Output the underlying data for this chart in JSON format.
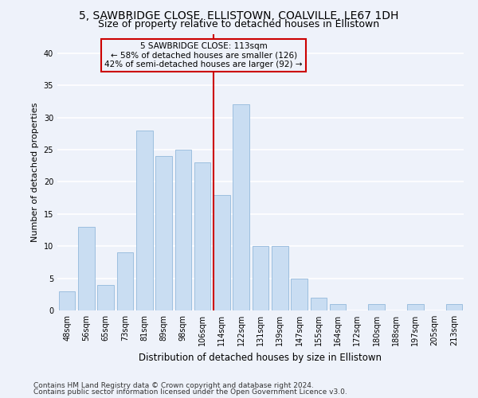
{
  "title1": "5, SAWBRIDGE CLOSE, ELLISTOWN, COALVILLE, LE67 1DH",
  "title2": "Size of property relative to detached houses in Ellistown",
  "xlabel": "Distribution of detached houses by size in Ellistown",
  "ylabel": "Number of detached properties",
  "categories": [
    "48sqm",
    "56sqm",
    "65sqm",
    "73sqm",
    "81sqm",
    "89sqm",
    "98sqm",
    "106sqm",
    "114sqm",
    "122sqm",
    "131sqm",
    "139sqm",
    "147sqm",
    "155sqm",
    "164sqm",
    "172sqm",
    "180sqm",
    "188sqm",
    "197sqm",
    "205sqm",
    "213sqm"
  ],
  "values": [
    3,
    13,
    4,
    9,
    28,
    24,
    25,
    23,
    18,
    32,
    10,
    10,
    5,
    2,
    1,
    0,
    1,
    0,
    1,
    0,
    1
  ],
  "bar_color": "#c9ddf2",
  "bar_edge_color": "#9dbfdf",
  "annotation_title": "5 SAWBRIDGE CLOSE: 113sqm",
  "annotation_line1": "← 58% of detached houses are smaller (126)",
  "annotation_line2": "42% of semi-detached houses are larger (92) →",
  "vline_color": "#cc0000",
  "ylim": [
    0,
    43
  ],
  "yticks": [
    0,
    5,
    10,
    15,
    20,
    25,
    30,
    35,
    40
  ],
  "footnote1": "Contains HM Land Registry data © Crown copyright and database right 2024.",
  "footnote2": "Contains public sector information licensed under the Open Government Licence v3.0.",
  "bg_color": "#eef2fa",
  "grid_color": "#ffffff",
  "title1_fontsize": 10,
  "title2_fontsize": 9,
  "xlabel_fontsize": 8.5,
  "ylabel_fontsize": 8,
  "tick_fontsize": 7,
  "footnote_fontsize": 6.5,
  "annotation_fontsize": 7.5
}
